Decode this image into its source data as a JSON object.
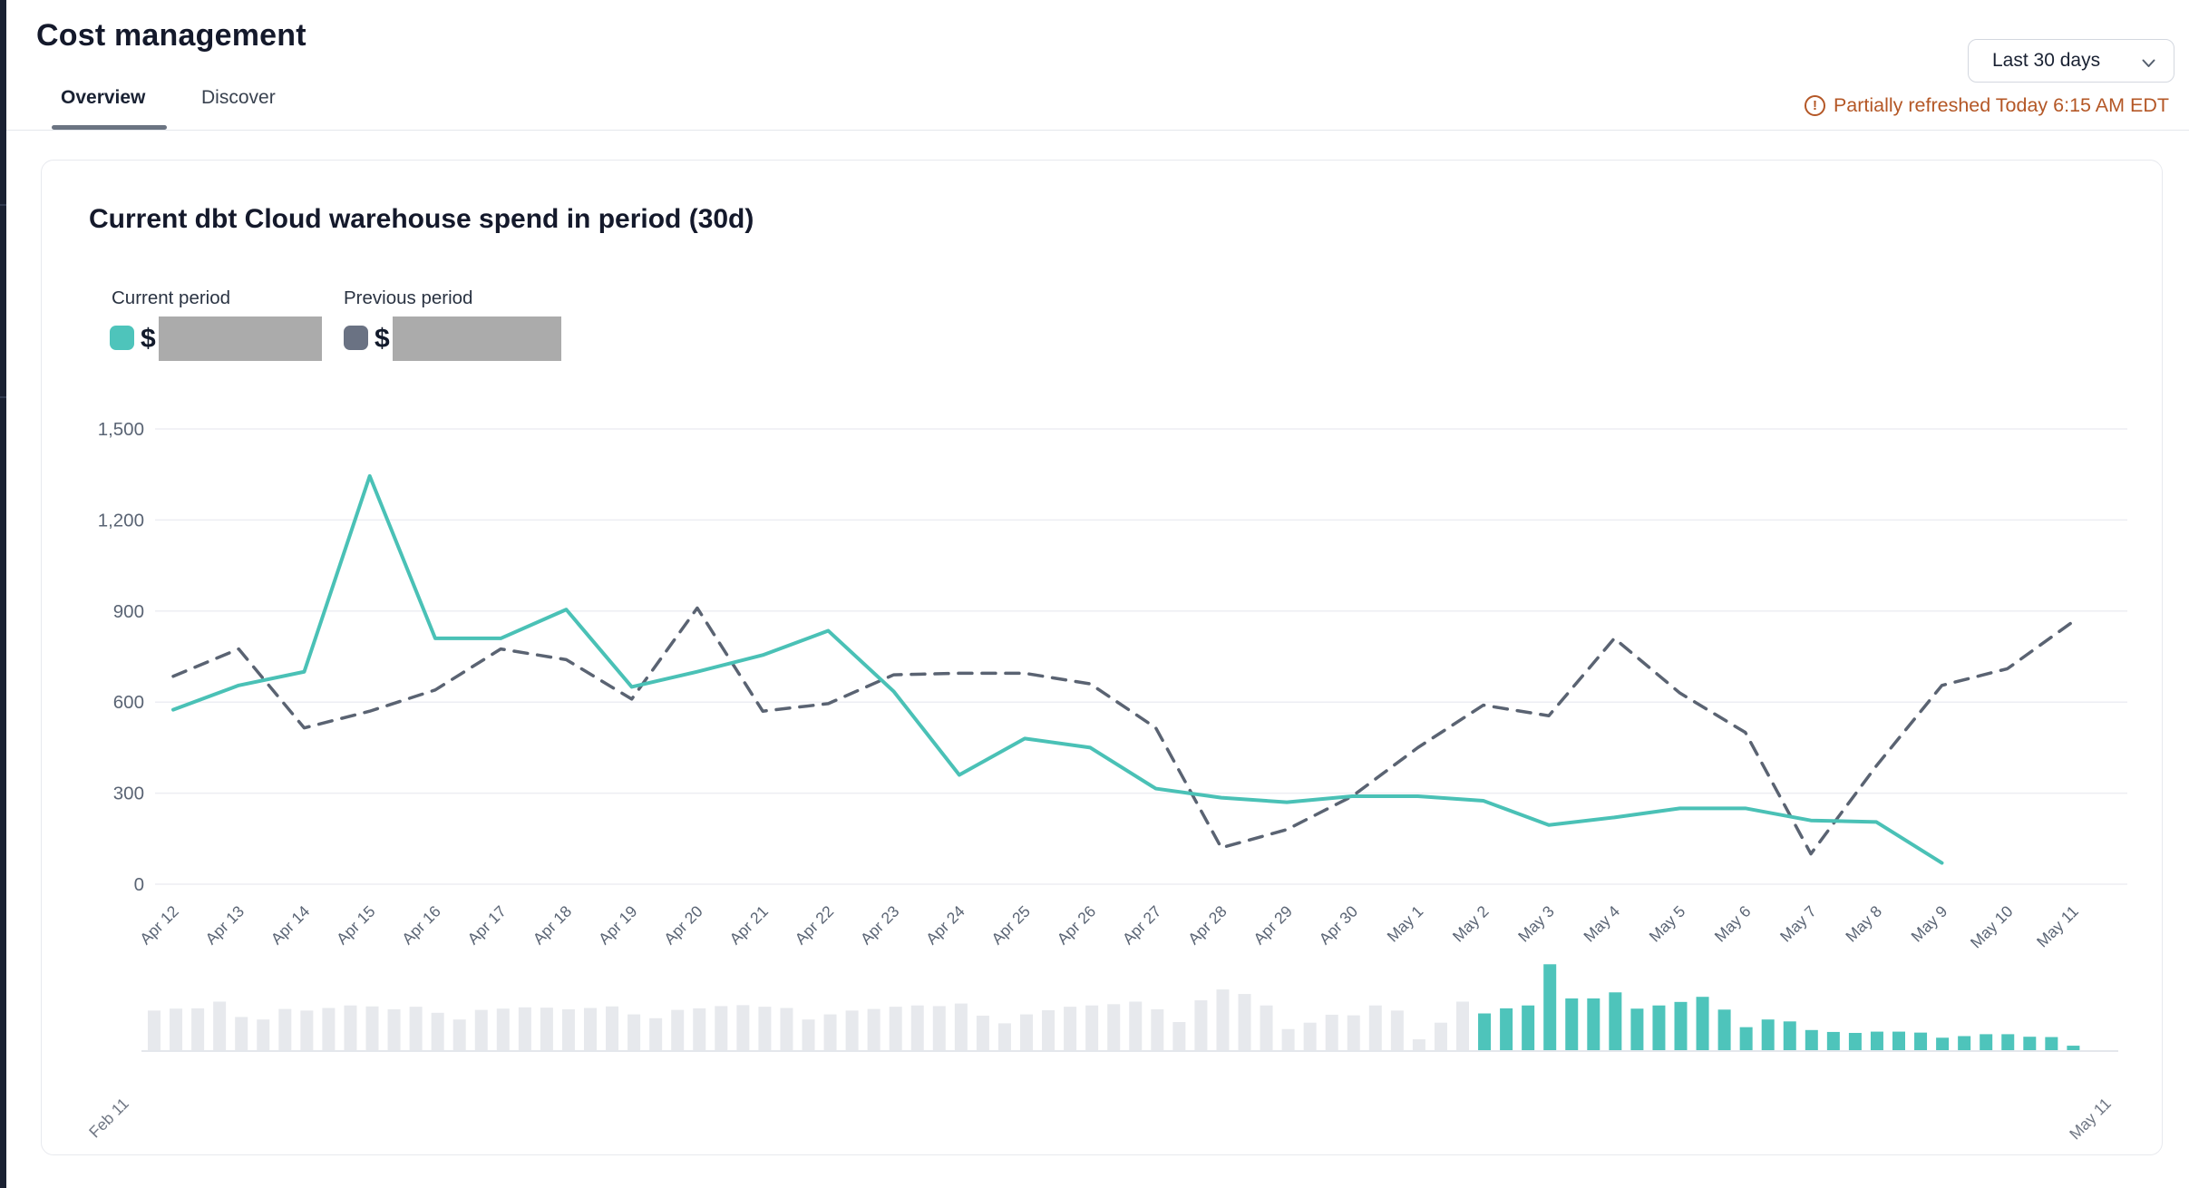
{
  "page": {
    "title": "Cost management"
  },
  "tabs": [
    {
      "label": "Overview",
      "active": true
    },
    {
      "label": "Discover",
      "active": false
    }
  ],
  "controls": {
    "date_range_value": "Last 30 days"
  },
  "status": {
    "refresh_notice": "Partially refreshed Today 6:15 AM EDT",
    "warning_glyph": "!",
    "warning_color": "#B45726"
  },
  "card": {
    "title": "Current dbt Cloud warehouse spend in period (30d)",
    "legend": {
      "current": {
        "label": "Current period",
        "currency_symbol": "$",
        "value_redacted": true,
        "swatch_color": "#4EC4BB"
      },
      "previous": {
        "label": "Previous period",
        "currency_symbol": "$",
        "value_redacted": true,
        "swatch_color": "#6A7283"
      }
    }
  },
  "chart_data": {
    "type": "line",
    "title": "Current dbt Cloud warehouse spend in period (30d)",
    "grid": "horizontal",
    "ylim": [
      0,
      1500
    ],
    "yticks": [
      0,
      300,
      600,
      900,
      1200,
      1500
    ],
    "ytick_labels": [
      "0",
      "300",
      "600",
      "900",
      "1,200",
      "1,500"
    ],
    "x": [
      "Apr 12",
      "Apr 13",
      "Apr 14",
      "Apr 15",
      "Apr 16",
      "Apr 17",
      "Apr 18",
      "Apr 19",
      "Apr 20",
      "Apr 21",
      "Apr 22",
      "Apr 23",
      "Apr 24",
      "Apr 25",
      "Apr 26",
      "Apr 27",
      "Apr 28",
      "Apr 29",
      "Apr 30",
      "May 1",
      "May 2",
      "May 3",
      "May 4",
      "May 5",
      "May 6",
      "May 7",
      "May 8",
      "May 9",
      "May 10",
      "May 11"
    ],
    "series": [
      {
        "name": "Current period",
        "style": "solid",
        "color": "#4AC1B6",
        "values": [
          575,
          655,
          700,
          1345,
          810,
          810,
          905,
          650,
          700,
          755,
          835,
          635,
          360,
          480,
          450,
          315,
          285,
          270,
          290,
          290,
          275,
          195,
          220,
          250,
          250,
          210,
          205,
          70,
          null,
          null
        ]
      },
      {
        "name": "Previous period",
        "style": "dashed",
        "color": "#5A6372",
        "values": [
          685,
          775,
          515,
          570,
          640,
          775,
          740,
          610,
          910,
          570,
          595,
          690,
          695,
          695,
          660,
          515,
          120,
          180,
          290,
          450,
          590,
          555,
          810,
          630,
          500,
          100,
          390,
          655,
          710,
          865
        ]
      }
    ]
  },
  "navigator": {
    "type": "bar",
    "start_label": "Feb 11",
    "end_label": "May 11",
    "bar_colors": {
      "context": "#E7E9ED",
      "selected": "#4EC4BB"
    },
    "context_values": [
      620,
      650,
      655,
      760,
      520,
      480,
      645,
      620,
      660,
      700,
      685,
      640,
      680,
      585,
      480,
      630,
      650,
      670,
      665,
      640,
      660,
      685,
      560,
      500,
      630,
      655,
      690,
      705,
      680,
      660,
      480,
      560,
      620,
      645,
      680,
      700,
      690,
      730,
      540,
      420,
      560,
      625,
      680,
      700,
      720,
      760,
      640,
      440,
      780,
      950,
      880,
      700,
      330,
      430,
      555,
      545,
      700,
      620,
      170,
      430,
      760
    ],
    "selected_values": [
      575,
      655,
      700,
      1345,
      810,
      810,
      905,
      650,
      700,
      755,
      835,
      635,
      360,
      480,
      450,
      315,
      285,
      270,
      290,
      290,
      275,
      195,
      220,
      250,
      250,
      210,
      205,
      70
    ]
  }
}
